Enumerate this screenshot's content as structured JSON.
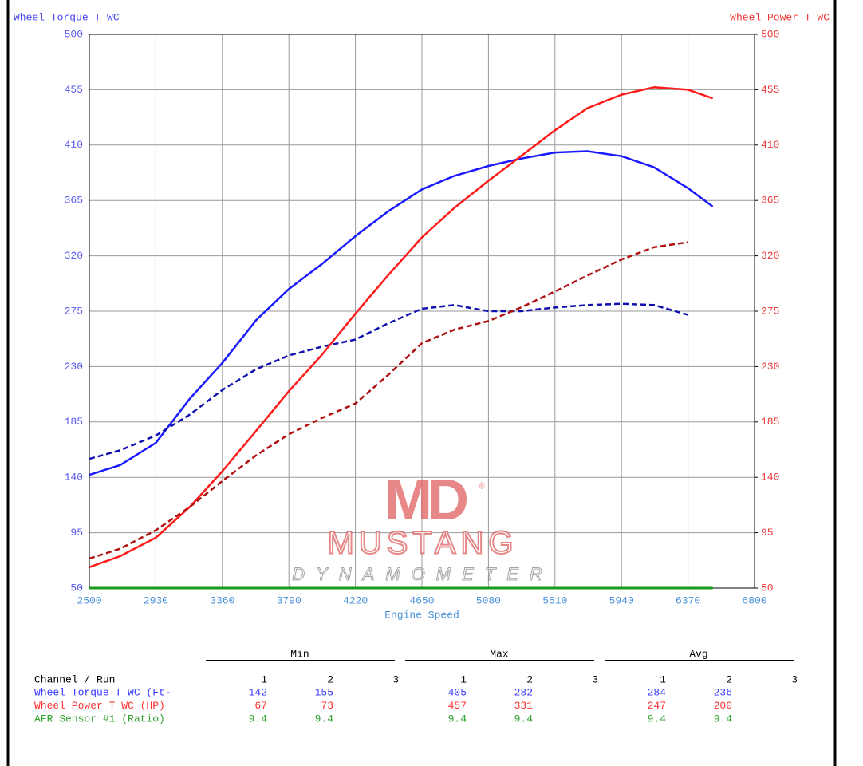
{
  "chart_data": {
    "type": "line",
    "title_left": "Wheel Torque T WC",
    "title_right": "Wheel Power T WC",
    "x_label": "Engine Speed",
    "x": [
      2500,
      2700,
      2930,
      3150,
      3360,
      3580,
      3790,
      4000,
      4220,
      4430,
      4650,
      4860,
      5080,
      5290,
      5510,
      5720,
      5940,
      6150,
      6370,
      6530
    ],
    "xlim": [
      2500,
      6800
    ],
    "xticks": [
      2500,
      2930,
      3360,
      3790,
      4220,
      4650,
      5080,
      5510,
      5940,
      6370,
      6800
    ],
    "ylim": [
      50,
      500
    ],
    "yticks": [
      50,
      95,
      140,
      185,
      230,
      275,
      320,
      365,
      410,
      455,
      500
    ],
    "y2lim": [
      50,
      500
    ],
    "y2ticks": [
      50,
      95,
      140,
      185,
      230,
      275,
      320,
      365,
      410,
      455,
      500
    ],
    "grid": true,
    "series": [
      {
        "color": "#1a1aff",
        "dash": false,
        "values": [
          142,
          150,
          168,
          204,
          233,
          268,
          293,
          313,
          336,
          356,
          374,
          385,
          393,
          399,
          404,
          405,
          401,
          392,
          375,
          360
        ]
      },
      {
        "color": "#1010b0",
        "dash": true,
        "values": [
          155,
          162,
          174,
          191,
          211,
          228,
          239,
          246,
          252,
          265,
          277,
          280,
          275,
          275,
          278,
          280,
          281,
          280,
          272,
          null
        ]
      },
      {
        "color": "#ff1a1a",
        "dash": false,
        "axis": "y2",
        "values": [
          67,
          76,
          91,
          116,
          145,
          178,
          210,
          239,
          273,
          304,
          335,
          359,
          381,
          401,
          422,
          440,
          451,
          457,
          455,
          448
        ]
      },
      {
        "color": "#b01010",
        "dash": true,
        "axis": "y2",
        "values": [
          74,
          82,
          97,
          116,
          137,
          158,
          175,
          188,
          200,
          223,
          249,
          260,
          267,
          278,
          291,
          304,
          317,
          327,
          331,
          null
        ]
      }
    ]
  },
  "logo": {
    "mark": "MD",
    "registered": "®",
    "name": "MUSTANG",
    "sub": "DYNAMOMETER"
  },
  "table": {
    "groups": [
      "Min",
      "Max",
      "Avg"
    ],
    "header": "Channel / Run",
    "runs": [
      1,
      2,
      3
    ],
    "rows": [
      {
        "label": "Wheel Torque T WC (Ft-",
        "color": "#3a3aff",
        "values": [
          142,
          155,
          null,
          405,
          282,
          null,
          284,
          236,
          null
        ]
      },
      {
        "label": "Wheel Power T WC (HP)",
        "color": "#ff3030",
        "values": [
          67,
          73,
          null,
          457,
          331,
          null,
          247,
          200,
          null
        ]
      },
      {
        "label": "AFR Sensor #1 (Ratio)",
        "color": "#2ea02e",
        "values": [
          9.4,
          9.4,
          null,
          9.4,
          9.4,
          null,
          9.4,
          9.4,
          null
        ]
      }
    ]
  }
}
